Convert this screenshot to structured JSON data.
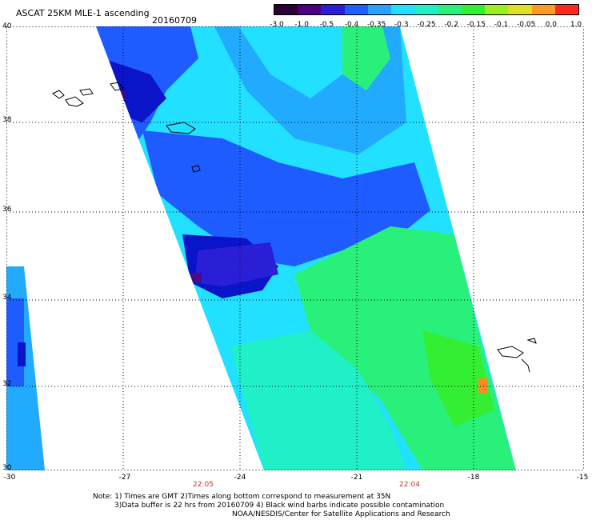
{
  "header": {
    "title": "ASCAT 25KM MLE-1 ascending",
    "date": "20160709"
  },
  "colorbar": {
    "labels": [
      "-3.0",
      "-1.0",
      "-0.5",
      "-0.4",
      "-0.35",
      "-0.3",
      "-0.25",
      "-0.2",
      "-0.15",
      "-0.1",
      "-0.05",
      "0.0",
      "1.0"
    ],
    "colors": [
      "#2a0033",
      "#4b0082",
      "#2a1fd6",
      "#1f5fff",
      "#2aa0ff",
      "#22e0ff",
      "#1ff0c8",
      "#29f07a",
      "#33ee33",
      "#9aee22",
      "#e0e022",
      "#ff9a22",
      "#ff2a1f"
    ]
  },
  "axes": {
    "y_labels": [
      "40",
      "38",
      "36",
      "34",
      "32",
      "30"
    ],
    "x_labels": [
      "-30",
      "-27",
      "-24",
      "-21",
      "-18",
      "-15"
    ],
    "time_labels": [
      "22:05",
      "22:04"
    ]
  },
  "colors": {
    "deep_blue": "#0a14c8",
    "blue": "#1e5cff",
    "light_blue": "#22aaff",
    "cyan": "#22f0ff",
    "aqua_green": "#22f0b4",
    "green": "#33ee55",
    "purple": "#4b0a82",
    "orange": "#ff8a22"
  },
  "notes": {
    "line1": "Note: 1) Times are GMT 2)Times along bottom correspond to measurement at 35N",
    "line2": "3)Data buffer is 22 hrs from 20160709 4) Black wind barbs indicate possible contamination",
    "line3": "NOAA/NESDIS/Center for Satellite Applications and Research"
  }
}
